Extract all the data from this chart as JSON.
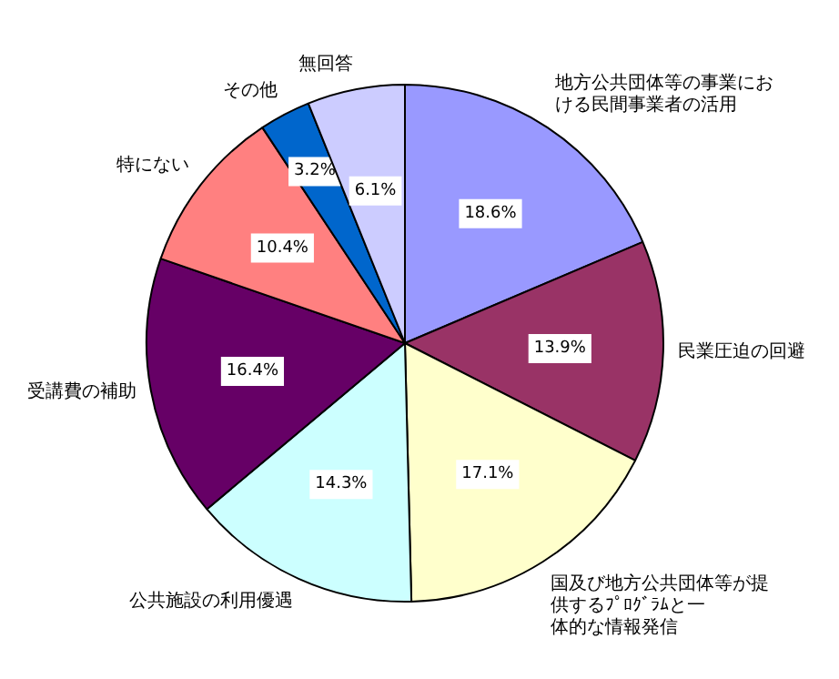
{
  "chart_data": {
    "type": "pie",
    "categories": [
      "地方公共団体等の事業における民間事業者の活用",
      "民業圧迫の回避",
      "国及び地方公共団体等が提供するﾌﾟﾛｸﾞﾗﾑと一体的な情報発信",
      "公共施設の利用優遇",
      "受講費の補助",
      "特にない",
      "その他",
      "無回答"
    ],
    "values": [
      18.6,
      13.9,
      17.1,
      14.3,
      16.4,
      10.4,
      3.2,
      6.1
    ],
    "colors": [
      "#9999ff",
      "#993366",
      "#ffffcc",
      "#ccffff",
      "#660066",
      "#ff8080",
      "#0066cc",
      "#ccccff"
    ],
    "value_labels": [
      "18.6%",
      "13.9%",
      "17.1%",
      "14.3%",
      "16.4%",
      "10.4%",
      "3.2%",
      "6.1%"
    ]
  }
}
